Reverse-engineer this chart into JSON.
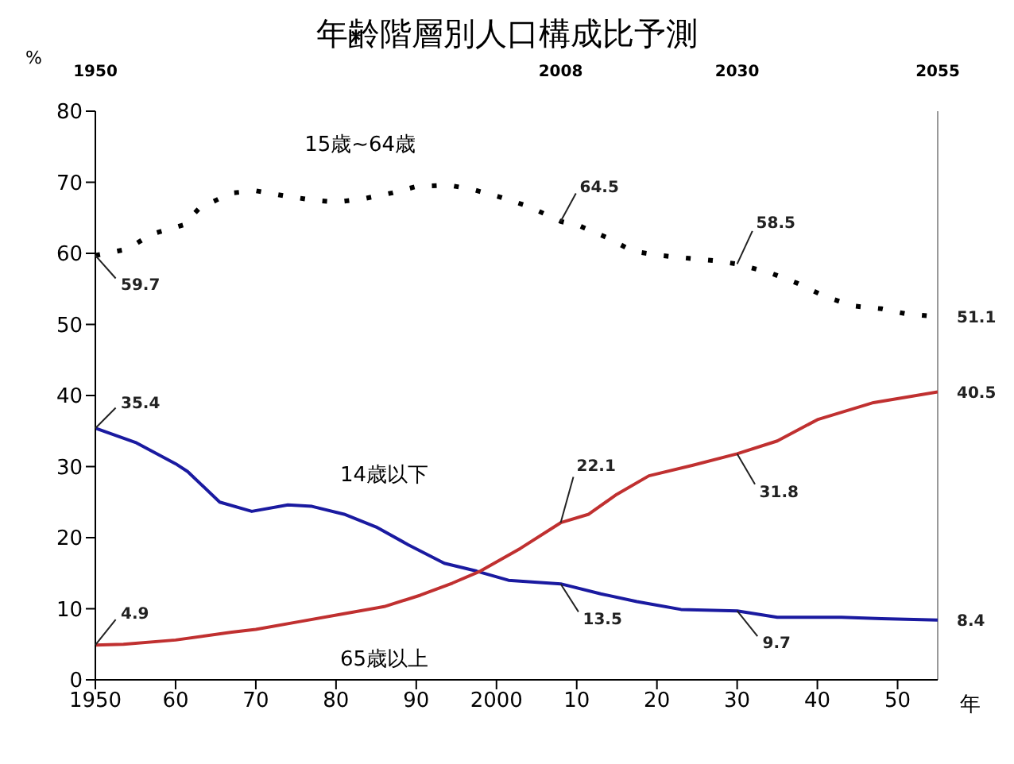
{
  "chart_data": {
    "type": "line",
    "title": "年齢階層別人口構成比予測",
    "ylabel": "%",
    "xlabel": "年",
    "xlim": [
      1950,
      2055
    ],
    "xticks": [
      {
        "value": 1950,
        "label": "1950"
      },
      {
        "value": 1960,
        "label": "60"
      },
      {
        "value": 1970,
        "label": "70"
      },
      {
        "value": 1980,
        "label": "80"
      },
      {
        "value": 1990,
        "label": "90"
      },
      {
        "value": 2000,
        "label": "2000"
      },
      {
        "value": 2010,
        "label": "10"
      },
      {
        "value": 2020,
        "label": "20"
      },
      {
        "value": 2030,
        "label": "30"
      },
      {
        "value": 2040,
        "label": "40"
      },
      {
        "value": 2050,
        "label": "50"
      }
    ],
    "x2lim": [
      1950,
      2055
    ],
    "x2ticks": [
      1950,
      2008,
      2030,
      2055
    ],
    "ylim": [
      0,
      80
    ],
    "yticks": [
      0,
      10,
      20,
      30,
      40,
      50,
      60,
      70,
      80
    ],
    "marker": "none",
    "ref_lines": [
      {
        "axis": "x",
        "value": 2055,
        "color": "#999999"
      }
    ],
    "series": [
      {
        "name": "15歳~64歳",
        "color": "#000000",
        "line_style": "dotted",
        "x": [
          1950,
          1954,
          1957,
          1961,
          1963,
          1967,
          1970,
          1973.5,
          1977,
          1980,
          1983.5,
          1987,
          1990,
          1994,
          1997,
          2000.5,
          2004,
          2008,
          2010.5,
          2014,
          2017,
          2020.5,
          2024,
          2027,
          2030,
          2034,
          2037.5,
          2041,
          2044.5,
          2048,
          2051,
          2055
        ],
        "values": [
          59.7,
          60.6,
          62.7,
          64,
          66.4,
          68.5,
          68.8,
          68.1,
          67.5,
          67.2,
          67.7,
          68.5,
          69.4,
          69.6,
          69,
          67.9,
          66.6,
          64.5,
          63.8,
          62.1,
          60.3,
          59.7,
          59.3,
          59,
          58.5,
          57.3,
          55.8,
          53.9,
          52.6,
          52.2,
          51.5,
          51.1
        ]
      },
      {
        "name": "14歳以下",
        "color": "#1a1aa0",
        "line_style": "solid",
        "x": [
          1950,
          1955,
          1960,
          1961.5,
          1965.5,
          1969.5,
          1974,
          1977,
          1981,
          1985,
          1989,
          1993.5,
          1997.5,
          2001.5,
          2008,
          2013,
          2017.5,
          2023,
          2030,
          2035,
          2043,
          2048,
          2055
        ],
        "values": [
          35.4,
          33.4,
          30.4,
          29.3,
          25,
          23.7,
          24.6,
          24.4,
          23.3,
          21.5,
          19,
          16.4,
          15.3,
          14,
          13.5,
          12.1,
          11,
          9.9,
          9.7,
          8.8,
          8.8,
          8.6,
          8.4
        ]
      },
      {
        "name": "65歳以上",
        "color": "#c03030",
        "line_style": "solid",
        "x": [
          1950,
          1953.5,
          1960,
          1967,
          1970,
          1975.5,
          1981,
          1986,
          1990.5,
          1994.5,
          1998,
          2003,
          2008,
          2011.5,
          2015,
          2019,
          2024.5,
          2030,
          2035,
          2040,
          2047,
          2055
        ],
        "values": [
          4.9,
          5,
          5.6,
          6.7,
          7.1,
          8.2,
          9.3,
          10.3,
          11.9,
          13.6,
          15.3,
          18.5,
          22.1,
          23.3,
          26.1,
          28.7,
          30.2,
          31.8,
          33.6,
          36.6,
          39,
          40.5
        ]
      }
    ],
    "annotations": [
      {
        "text": "59.7",
        "x": 1950,
        "y": 59.7
      },
      {
        "text": "35.4",
        "x": 1950,
        "y": 35.4
      },
      {
        "text": "4.9",
        "x": 1950,
        "y": 4.9
      },
      {
        "text": "64.5",
        "x": 2008,
        "y": 64.5
      },
      {
        "text": "58.5",
        "x": 2030,
        "y": 58.5
      },
      {
        "text": "51.1",
        "x": 2055,
        "y": 51.1
      },
      {
        "text": "22.1",
        "x": 2008,
        "y": 22.1
      },
      {
        "text": "31.8",
        "x": 2030,
        "y": 31.8
      },
      {
        "text": "40.5",
        "x": 2055,
        "y": 40.5
      },
      {
        "text": "13.5",
        "x": 2008,
        "y": 13.5
      },
      {
        "text": "9.7",
        "x": 2030,
        "y": 9.7
      },
      {
        "text": "8.4",
        "x": 2055,
        "y": 8.4
      }
    ]
  }
}
